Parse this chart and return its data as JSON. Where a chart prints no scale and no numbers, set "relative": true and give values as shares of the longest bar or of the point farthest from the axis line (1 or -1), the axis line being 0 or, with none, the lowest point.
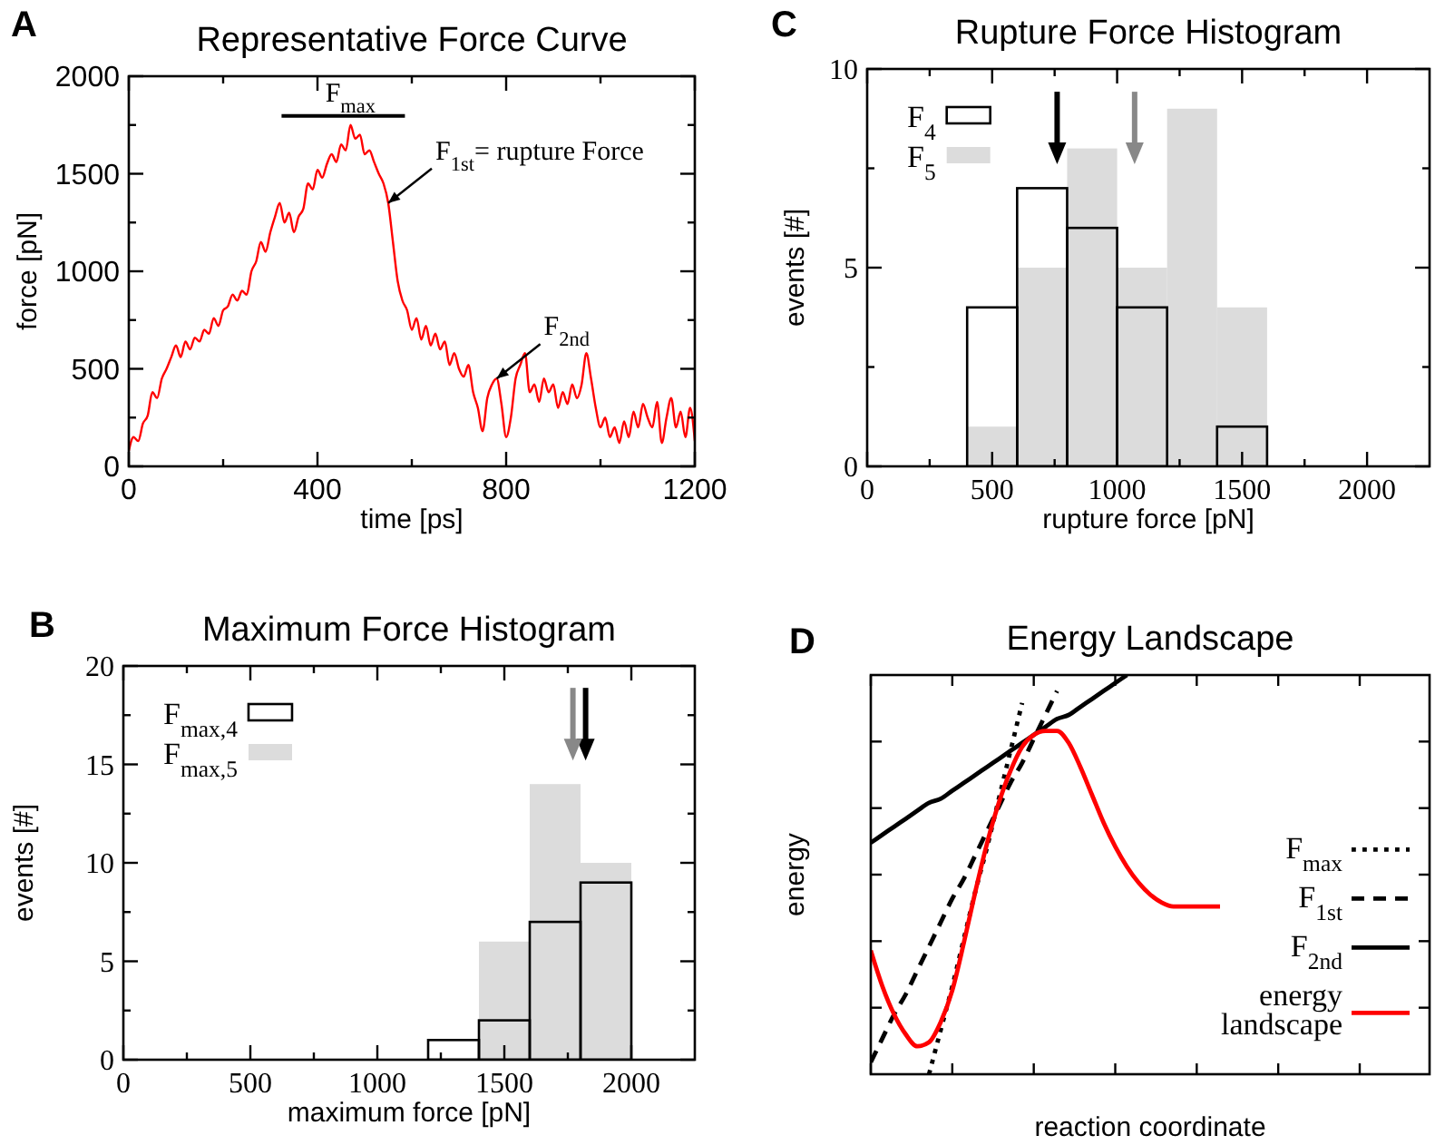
{
  "chart_data": [
    {
      "type": "line",
      "title": "Representative Force Curve",
      "xlabel": "time [ps]",
      "ylabel": "force [pN]",
      "x": [
        0,
        10,
        20,
        30,
        40,
        50,
        60,
        70,
        80,
        90,
        100,
        110,
        120,
        130,
        140,
        150,
        160,
        170,
        180,
        190,
        200,
        210,
        220,
        230,
        240,
        250,
        260,
        270,
        280,
        290,
        300,
        310,
        320,
        330,
        340,
        350,
        360,
        370,
        380,
        390,
        400,
        410,
        420,
        430,
        440,
        450,
        460,
        470,
        480,
        490,
        500,
        510,
        520,
        530,
        540,
        550,
        560,
        570,
        580,
        590,
        600,
        610,
        620,
        630,
        640,
        650,
        660,
        670,
        680,
        690,
        700,
        710,
        720,
        730,
        740,
        750,
        760,
        770,
        780,
        790,
        800,
        810,
        820,
        830,
        840,
        850,
        860,
        870,
        880,
        890,
        900,
        910,
        920,
        930,
        940,
        950,
        960,
        970,
        980,
        990,
        1000,
        1010,
        1020,
        1030,
        1040,
        1050,
        1060,
        1070,
        1080,
        1090,
        1100,
        1110,
        1120,
        1130,
        1140,
        1150,
        1160,
        1170,
        1180,
        1190,
        1200
      ],
      "series": [
        {
          "color": "#ff0000",
          "values": [
            80,
            150,
            130,
            220,
            260,
            380,
            350,
            450,
            500,
            560,
            620,
            560,
            640,
            600,
            660,
            640,
            700,
            680,
            760,
            720,
            800,
            820,
            880,
            850,
            900,
            880,
            1000,
            1050,
            1150,
            1100,
            1200,
            1280,
            1350,
            1250,
            1300,
            1200,
            1280,
            1320,
            1450,
            1420,
            1520,
            1480,
            1550,
            1600,
            1560,
            1650,
            1620,
            1750,
            1680,
            1700,
            1600,
            1620,
            1560,
            1500,
            1450,
            1350,
            1150,
            950,
            850,
            800,
            700,
            760,
            650,
            720,
            620,
            680,
            600,
            640,
            520,
            580,
            500,
            460,
            520,
            380,
            300,
            180,
            350,
            420,
            450,
            320,
            150,
            250,
            450,
            520,
            580,
            380,
            420,
            330,
            450,
            380,
            420,
            300,
            380,
            320,
            420,
            350,
            420,
            580,
            450,
            300,
            200,
            250,
            150,
            200,
            120,
            230,
            150,
            280,
            200,
            320,
            250,
            200,
            330,
            120,
            250,
            350,
            200,
            280,
            150,
            300,
            130
          ]
        }
      ],
      "xlim": [
        0,
        1200
      ],
      "ylim": [
        0,
        2000
      ],
      "xticks": [
        0,
        {
          "value": 200,
          "label": null
        },
        400,
        {
          "value": 600,
          "label": null
        },
        800,
        {
          "value": 1000,
          "label": null
        },
        1200
      ],
      "yticks": [
        0,
        {
          "value": 250,
          "label": null
        },
        500,
        {
          "value": 750,
          "label": null
        },
        1000,
        {
          "value": 1250,
          "label": null
        },
        1500,
        {
          "value": 1750,
          "label": null
        },
        2000
      ],
      "annotations": [
        "A",
        {
          "text": "F$_{max}$",
          "x": 470,
          "y": 1750
        },
        {
          "text": "F$_{1st}$= rupture Force",
          "x": 550,
          "y": 1350
        },
        {
          "text": "F$_{2nd}$",
          "x": 780,
          "y": 450
        }
      ]
    },
    {
      "type": "histogram",
      "title": "Rupture Force Histogram",
      "xlabel": "rupture force [pN]",
      "ylabel": "events [#]",
      "bins": [
        400,
        600,
        800,
        1000,
        1200,
        1400,
        1600
      ],
      "series": [
        {
          "name": "F$_{4}$",
          "color": "#000000",
          "values": [
            4,
            7,
            6,
            4,
            0,
            1
          ]
        },
        {
          "name": "F$_{5}$",
          "color": "#dcdcdc",
          "values": [
            1,
            5,
            8,
            5,
            9,
            4
          ]
        }
      ],
      "xlim": [
        0,
        2250
      ],
      "ylim": [
        0,
        10
      ],
      "xticks": [
        0,
        {
          "value": 250,
          "label": null
        },
        500,
        {
          "value": 750,
          "label": null
        },
        1000,
        {
          "value": 1250,
          "label": null
        },
        1500,
        {
          "value": 1750,
          "label": null
        },
        2000
      ],
      "yticks": [
        0,
        {
          "value": 2.5,
          "label": null
        },
        5,
        {
          "value": 7.5,
          "label": null
        },
        10
      ],
      "legend": "top left",
      "ref_lines": [
        {
          "axis": "x",
          "value": 760,
          "color": "#000000"
        },
        {
          "axis": "x",
          "value": 1070,
          "color": "#888888"
        }
      ],
      "annotations": [
        "C"
      ]
    },
    {
      "type": "histogram",
      "title": "Maximum Force Histogram",
      "xlabel": "maximum force [pN]",
      "ylabel": "events [#]",
      "bins": [
        1200,
        1400,
        1600,
        1800,
        2000
      ],
      "series": [
        {
          "name": "F$_{max,4}$",
          "color": "#000000",
          "values": [
            1,
            2,
            7,
            9
          ]
        },
        {
          "name": "F$_{max,5}$",
          "color": "#dcdcdc",
          "values": [
            0,
            6,
            14,
            10
          ]
        }
      ],
      "xlim": [
        0,
        2250
      ],
      "ylim": [
        0,
        20
      ],
      "xticks": [
        0,
        {
          "value": 250,
          "label": null
        },
        500,
        {
          "value": 750,
          "label": null
        },
        1000,
        {
          "value": 1250,
          "label": null
        },
        1500,
        {
          "value": 1750,
          "label": null
        },
        2000
      ],
      "yticks": [
        0,
        {
          "value": 2.5,
          "label": null
        },
        5,
        {
          "value": 7.5,
          "label": null
        },
        10,
        {
          "value": 12.5,
          "label": null
        },
        15,
        {
          "value": 17.5,
          "label": null
        },
        20
      ],
      "legend": "top left",
      "ref_lines": [
        {
          "axis": "x",
          "value": 1820,
          "color": "#000000"
        },
        {
          "axis": "x",
          "value": 1770,
          "color": "#888888"
        }
      ],
      "annotations": [
        "B"
      ]
    },
    {
      "type": "line",
      "title": "Energy Landscape",
      "xlabel": "reaction coordinate",
      "ylabel": "energy",
      "relative": true,
      "categories": [
        null,
        null,
        null,
        null,
        null,
        null,
        null,
        null,
        null,
        null,
        null,
        null,
        null,
        null,
        null,
        null,
        null,
        null,
        null,
        null,
        null,
        null,
        null,
        null,
        null,
        null,
        null,
        null,
        null,
        null,
        null,
        null,
        null,
        null,
        null,
        null,
        null,
        null,
        null,
        null,
        null,
        null,
        null,
        null,
        null,
        null,
        null,
        null,
        null
      ],
      "series": [
        {
          "name": "F$_{max}$",
          "color": "#000000",
          "line_style": "dotted",
          "values": [
            null,
            null,
            null,
            null,
            null,
            0.0,
            0.11,
            0.22,
            0.34,
            0.46,
            0.57,
            0.69,
            0.81,
            0.93,
            null,
            null,
            null,
            null,
            null,
            null,
            null,
            null,
            null,
            null,
            null,
            null,
            null,
            null,
            null,
            null,
            null,
            null,
            null,
            null,
            null,
            null,
            null,
            null,
            null,
            null,
            null,
            null,
            null,
            null,
            null,
            null,
            null,
            null,
            null
          ]
        },
        {
          "name": "F$_{1st}$",
          "color": "#000000",
          "line_style": "dashed",
          "values": [
            0.03,
            0.09,
            0.15,
            0.2,
            0.26,
            0.32,
            0.38,
            0.44,
            0.49,
            0.55,
            0.61,
            0.67,
            0.73,
            0.78,
            0.84,
            0.9,
            0.96,
            null,
            null,
            null,
            null,
            null,
            null,
            null,
            null,
            null,
            null,
            null,
            null,
            null,
            null,
            null,
            null,
            null,
            null,
            null,
            null,
            null,
            null,
            null,
            null,
            null,
            null,
            null,
            null,
            null,
            null,
            null,
            null
          ]
        },
        {
          "name": "F$_{2nd}$",
          "color": "#000000",
          "line_style": "solid",
          "values": [
            0.58,
            0.6,
            0.62,
            0.64,
            0.66,
            0.68,
            0.69,
            0.71,
            0.73,
            0.75,
            0.77,
            0.79,
            0.81,
            0.83,
            0.85,
            0.87,
            0.89,
            0.9,
            0.92,
            0.94,
            0.96,
            0.98,
            1.0,
            null,
            null,
            null,
            null,
            null,
            null,
            null,
            null,
            null,
            null,
            null,
            null,
            null,
            null,
            null,
            null,
            null,
            null,
            null,
            null,
            null,
            null,
            null,
            null,
            null,
            null
          ]
        },
        {
          "name": "energy landscape",
          "color": "#ff0000",
          "line_style": "solid",
          "values": [
            0.31,
            0.22,
            0.15,
            0.1,
            0.07,
            0.08,
            0.13,
            0.21,
            0.33,
            0.46,
            0.58,
            0.68,
            0.76,
            0.82,
            0.85,
            0.86,
            0.86,
            0.83,
            0.77,
            0.7,
            0.63,
            0.57,
            0.52,
            0.48,
            0.45,
            0.43,
            0.42,
            0.42,
            0.42,
            0.42,
            0.42,
            null,
            null,
            null,
            null,
            null,
            null,
            null,
            null,
            null,
            null,
            null,
            null,
            null,
            null,
            null,
            null,
            null,
            null
          ]
        }
      ],
      "legend": "right",
      "annotations": [
        "D"
      ]
    }
  ]
}
